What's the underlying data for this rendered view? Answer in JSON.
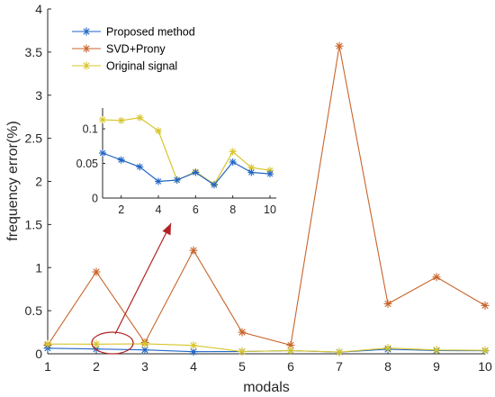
{
  "chart_data": {
    "type": "line",
    "xlabel": "modals",
    "ylabel": "frequency error(%)",
    "x": [
      1,
      2,
      3,
      4,
      5,
      6,
      7,
      8,
      9,
      10
    ],
    "xlim": [
      1,
      10
    ],
    "ylim": [
      0,
      4
    ],
    "x_ticks": [
      "1",
      "2",
      "3",
      "4",
      "5",
      "6",
      "7",
      "8",
      "9",
      "10"
    ],
    "y_ticks": [
      "0",
      "0.5",
      "1",
      "1.5",
      "2",
      "2.5",
      "3",
      "3.5",
      "4"
    ],
    "grid": false,
    "legend_position": "top-left",
    "series": [
      {
        "name": "Proposed method",
        "color": "#2166c4",
        "values": [
          0.065,
          0.055,
          0.045,
          0.024,
          0.026,
          0.037,
          0.019,
          0.052,
          0.037,
          0.035
        ]
      },
      {
        "name": "SVD+Prony",
        "color": "#c8642a",
        "values": [
          0.1,
          0.95,
          0.13,
          1.2,
          0.25,
          0.1,
          3.57,
          0.58,
          0.89,
          0.56
        ]
      },
      {
        "name": "Original signal",
        "color": "#d8c52c",
        "values": [
          0.113,
          0.112,
          0.116,
          0.097,
          0.026,
          0.038,
          0.02,
          0.067,
          0.044,
          0.04
        ]
      }
    ],
    "inset": {
      "xlim": [
        1,
        10
      ],
      "ylim": [
        0,
        0.13
      ],
      "x_ticks": [
        "2",
        "4",
        "6",
        "8",
        "10"
      ],
      "y_ticks": [
        "0",
        "0.05",
        "0.1"
      ],
      "series_refs": [
        "Proposed method",
        "Original signal"
      ]
    },
    "annotation": "ellipse around modal 2 near zero with arrow pointing to the zoomed inset"
  }
}
